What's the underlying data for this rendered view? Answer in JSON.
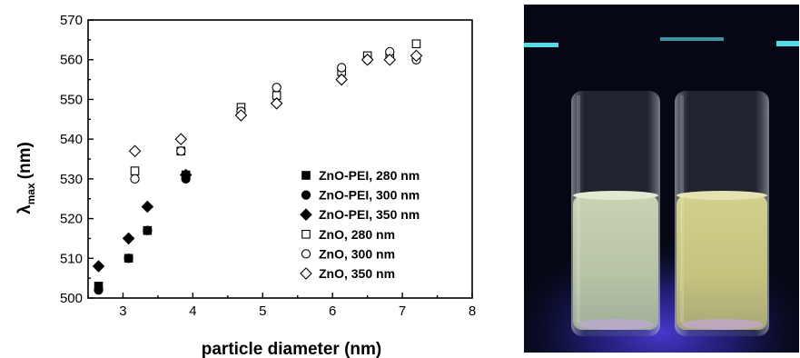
{
  "chart_data": {
    "type": "scatter",
    "xlabel": "particle diameter (nm)",
    "ylabel_main": "λ",
    "ylabel_sub": "max",
    "ylabel_unit": "(nm)",
    "xlim": [
      2.5,
      8
    ],
    "ylim": [
      500,
      570
    ],
    "xticks": [
      "3",
      "4",
      "5",
      "6",
      "7",
      "8"
    ],
    "yticks": [
      "500",
      "510",
      "520",
      "530",
      "540",
      "550",
      "560",
      "570"
    ],
    "grid": false,
    "legend_position": "bottom-right",
    "series": [
      {
        "name": "ZnO-PEI, 280 nm",
        "marker": "square",
        "filled": true,
        "points": [
          [
            2.65,
            503
          ],
          [
            3.08,
            510
          ],
          [
            3.35,
            517
          ],
          [
            3.9,
            531
          ]
        ]
      },
      {
        "name": "ZnO-PEI, 300 nm",
        "marker": "circle",
        "filled": true,
        "points": [
          [
            2.65,
            502
          ],
          [
            3.08,
            510
          ],
          [
            3.35,
            517
          ],
          [
            3.9,
            530
          ]
        ]
      },
      {
        "name": "ZnO-PEI, 350 nm",
        "marker": "diamond",
        "filled": true,
        "points": [
          [
            2.65,
            508
          ],
          [
            3.08,
            515
          ],
          [
            3.35,
            523
          ],
          [
            3.9,
            531
          ]
        ]
      },
      {
        "name": "ZnO, 280 nm",
        "marker": "square",
        "filled": false,
        "points": [
          [
            3.17,
            532
          ],
          [
            3.83,
            537
          ],
          [
            4.69,
            548
          ],
          [
            5.2,
            551
          ],
          [
            6.13,
            557
          ],
          [
            6.5,
            561
          ],
          [
            6.82,
            561
          ],
          [
            7.2,
            564
          ]
        ]
      },
      {
        "name": "ZnO, 300 nm",
        "marker": "circle",
        "filled": false,
        "points": [
          [
            3.17,
            530
          ],
          [
            3.83,
            537
          ],
          [
            4.69,
            547
          ],
          [
            5.2,
            553
          ],
          [
            6.13,
            558
          ],
          [
            6.5,
            560
          ],
          [
            6.82,
            562
          ],
          [
            7.2,
            560
          ]
        ]
      },
      {
        "name": "ZnO, 350 nm",
        "marker": "diamond",
        "filled": false,
        "points": [
          [
            3.17,
            537
          ],
          [
            3.83,
            540
          ],
          [
            4.69,
            546
          ],
          [
            5.2,
            549
          ],
          [
            6.13,
            555
          ],
          [
            6.5,
            560
          ],
          [
            6.82,
            560
          ],
          [
            7.2,
            561
          ]
        ]
      }
    ]
  },
  "photo": {
    "description_icon": "vial-photo-icon",
    "colors": {
      "background": "#050814",
      "liquid_left": "#b7c3a5",
      "liquid_right": "#c4c37e",
      "uv_glow": "#4b3bd6",
      "cyan_light": "#5ef3ff"
    }
  }
}
